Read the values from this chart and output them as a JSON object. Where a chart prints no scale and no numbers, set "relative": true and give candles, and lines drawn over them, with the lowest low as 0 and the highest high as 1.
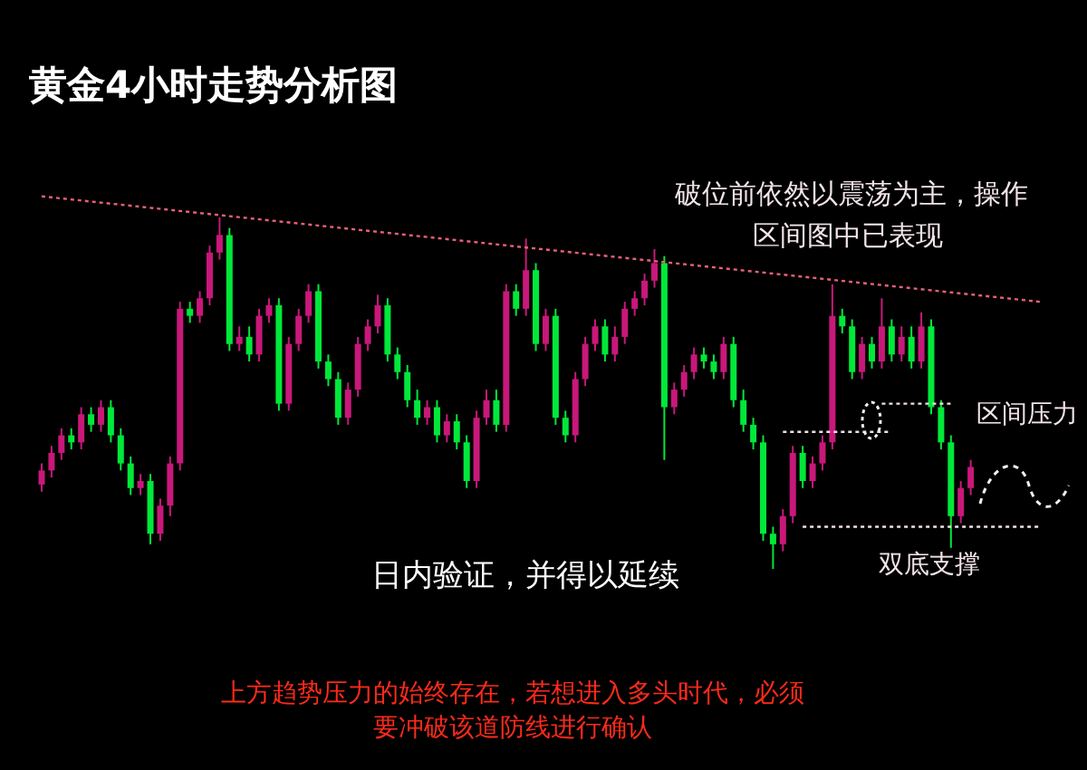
{
  "chart_data": {
    "type": "candlestick",
    "title": "黄金4小时走势分析图",
    "relative": true,
    "categories": [
      null,
      null,
      null,
      null,
      null,
      null,
      null,
      null,
      null,
      null,
      null,
      null,
      null,
      null,
      null,
      null,
      null,
      null,
      null,
      null,
      null,
      null,
      null,
      null,
      null,
      null,
      null,
      null,
      null,
      null,
      null,
      null,
      null,
      null,
      null,
      null,
      null,
      null,
      null,
      null,
      null,
      null,
      null,
      null,
      null,
      null,
      null,
      null,
      null,
      null,
      null,
      null,
      null,
      null,
      null,
      null,
      null,
      null,
      null,
      null,
      null,
      null,
      null,
      null,
      null,
      null,
      null,
      null,
      null,
      null,
      null,
      null,
      null,
      null,
      null,
      null,
      null,
      null,
      null,
      null,
      null,
      null,
      null,
      null,
      null,
      null,
      null,
      null,
      null,
      null,
      null,
      null,
      null,
      null,
      null,
      null,
      null,
      null,
      null,
      null,
      null,
      null
    ],
    "ohlc": [
      [
        0.24,
        0.3,
        0.22,
        0.28
      ],
      [
        0.28,
        0.35,
        0.26,
        0.33
      ],
      [
        0.33,
        0.4,
        0.31,
        0.38
      ],
      [
        0.38,
        0.4,
        0.34,
        0.36
      ],
      [
        0.36,
        0.46,
        0.34,
        0.44
      ],
      [
        0.44,
        0.46,
        0.39,
        0.41
      ],
      [
        0.41,
        0.48,
        0.39,
        0.46
      ],
      [
        0.46,
        0.48,
        0.36,
        0.38
      ],
      [
        0.38,
        0.4,
        0.28,
        0.3
      ],
      [
        0.3,
        0.32,
        0.21,
        0.23
      ],
      [
        0.23,
        0.27,
        0.21,
        0.25
      ],
      [
        0.25,
        0.27,
        0.07,
        0.1
      ],
      [
        0.1,
        0.2,
        0.08,
        0.18
      ],
      [
        0.18,
        0.32,
        0.15,
        0.3
      ],
      [
        0.3,
        0.76,
        0.28,
        0.74
      ],
      [
        0.74,
        0.76,
        0.7,
        0.72
      ],
      [
        0.72,
        0.79,
        0.7,
        0.77
      ],
      [
        0.77,
        0.92,
        0.75,
        0.9
      ],
      [
        0.9,
        1.0,
        0.88,
        0.95
      ],
      [
        0.95,
        0.97,
        0.62,
        0.64
      ],
      [
        0.64,
        0.69,
        0.62,
        0.66
      ],
      [
        0.66,
        0.69,
        0.59,
        0.61
      ],
      [
        0.61,
        0.74,
        0.59,
        0.72
      ],
      [
        0.72,
        0.77,
        0.7,
        0.75
      ],
      [
        0.75,
        0.77,
        0.45,
        0.47
      ],
      [
        0.47,
        0.66,
        0.45,
        0.64
      ],
      [
        0.64,
        0.74,
        0.62,
        0.72
      ],
      [
        0.72,
        0.81,
        0.7,
        0.79
      ],
      [
        0.79,
        0.81,
        0.57,
        0.59
      ],
      [
        0.59,
        0.61,
        0.52,
        0.54
      ],
      [
        0.54,
        0.56,
        0.41,
        0.43
      ],
      [
        0.43,
        0.53,
        0.41,
        0.51
      ],
      [
        0.51,
        0.66,
        0.49,
        0.64
      ],
      [
        0.64,
        0.71,
        0.62,
        0.69
      ],
      [
        0.69,
        0.78,
        0.67,
        0.75
      ],
      [
        0.75,
        0.77,
        0.59,
        0.61
      ],
      [
        0.61,
        0.63,
        0.54,
        0.56
      ],
      [
        0.56,
        0.58,
        0.46,
        0.48
      ],
      [
        0.48,
        0.51,
        0.41,
        0.43
      ],
      [
        0.43,
        0.48,
        0.41,
        0.46
      ],
      [
        0.46,
        0.48,
        0.36,
        0.38
      ],
      [
        0.38,
        0.44,
        0.36,
        0.42
      ],
      [
        0.42,
        0.44,
        0.34,
        0.36
      ],
      [
        0.36,
        0.38,
        0.23,
        0.25
      ],
      [
        0.25,
        0.45,
        0.23,
        0.43
      ],
      [
        0.43,
        0.51,
        0.41,
        0.48
      ],
      [
        0.48,
        0.51,
        0.39,
        0.41
      ],
      [
        0.41,
        0.81,
        0.39,
        0.79
      ],
      [
        0.79,
        0.81,
        0.72,
        0.74
      ],
      [
        0.74,
        0.94,
        0.72,
        0.85
      ],
      [
        0.85,
        0.87,
        0.62,
        0.64
      ],
      [
        0.64,
        0.74,
        0.62,
        0.72
      ],
      [
        0.72,
        0.74,
        0.41,
        0.43
      ],
      [
        0.43,
        0.45,
        0.36,
        0.38
      ],
      [
        0.38,
        0.56,
        0.36,
        0.54
      ],
      [
        0.54,
        0.66,
        0.52,
        0.64
      ],
      [
        0.64,
        0.71,
        0.62,
        0.69
      ],
      [
        0.69,
        0.71,
        0.59,
        0.61
      ],
      [
        0.61,
        0.69,
        0.59,
        0.66
      ],
      [
        0.66,
        0.76,
        0.64,
        0.74
      ],
      [
        0.74,
        0.79,
        0.72,
        0.77
      ],
      [
        0.77,
        0.84,
        0.75,
        0.82
      ],
      [
        0.82,
        0.91,
        0.8,
        0.87
      ],
      [
        0.87,
        0.89,
        0.31,
        0.46
      ],
      [
        0.46,
        0.53,
        0.44,
        0.51
      ],
      [
        0.51,
        0.58,
        0.49,
        0.56
      ],
      [
        0.56,
        0.63,
        0.54,
        0.61
      ],
      [
        0.61,
        0.63,
        0.57,
        0.59
      ],
      [
        0.59,
        0.61,
        0.54,
        0.56
      ],
      [
        0.56,
        0.66,
        0.54,
        0.64
      ],
      [
        0.64,
        0.66,
        0.46,
        0.48
      ],
      [
        0.48,
        0.51,
        0.39,
        0.41
      ],
      [
        0.41,
        0.43,
        0.34,
        0.36
      ],
      [
        0.36,
        0.38,
        0.08,
        0.1
      ],
      [
        0.1,
        0.12,
        0,
        0.07
      ],
      [
        0.07,
        0.17,
        0.05,
        0.15
      ],
      [
        0.15,
        0.35,
        0.13,
        0.33
      ],
      [
        0.33,
        0.35,
        0.23,
        0.25
      ],
      [
        0.25,
        0.32,
        0.23,
        0.3
      ],
      [
        0.3,
        0.38,
        0.28,
        0.36
      ],
      [
        0.36,
        0.81,
        0.34,
        0.72
      ],
      [
        0.72,
        0.74,
        0.67,
        0.69
      ],
      [
        0.69,
        0.71,
        0.54,
        0.56
      ],
      [
        0.56,
        0.66,
        0.54,
        0.64
      ],
      [
        0.64,
        0.66,
        0.57,
        0.59
      ],
      [
        0.59,
        0.77,
        0.57,
        0.69
      ],
      [
        0.69,
        0.71,
        0.59,
        0.61
      ],
      [
        0.61,
        0.69,
        0.59,
        0.66
      ],
      [
        0.66,
        0.69,
        0.57,
        0.59
      ],
      [
        0.59,
        0.73,
        0.57,
        0.69
      ],
      [
        0.69,
        0.71,
        0.44,
        0.46
      ],
      [
        0.46,
        0.48,
        0.34,
        0.36
      ],
      [
        0.36,
        0.38,
        0.06,
        0.15
      ],
      [
        0.15,
        0.25,
        0.13,
        0.23
      ],
      [
        0.23,
        0.31,
        0.21,
        0.29
      ],
      null,
      null,
      null,
      null,
      null,
      null,
      null
    ],
    "colors": [
      "#c8187a",
      "#c8187a",
      "#c8187a",
      "#00e83a",
      "#c8187a",
      "#00e83a",
      "#c8187a",
      "#00e83a",
      "#00e83a",
      "#00e83a",
      "#c8187a",
      "#00e83a",
      "#c8187a",
      "#c8187a",
      "#c8187a",
      "#00e83a",
      "#c8187a",
      "#c8187a",
      "#c8187a",
      "#00e83a",
      "#c8187a",
      "#00e83a",
      "#c8187a",
      "#c8187a",
      "#00e83a",
      "#c8187a",
      "#c8187a",
      "#c8187a",
      "#00e83a",
      "#00e83a",
      "#00e83a",
      "#c8187a",
      "#c8187a",
      "#c8187a",
      "#c8187a",
      "#00e83a",
      "#00e83a",
      "#00e83a",
      "#00e83a",
      "#c8187a",
      "#00e83a",
      "#c8187a",
      "#00e83a",
      "#00e83a",
      "#c8187a",
      "#c8187a",
      "#00e83a",
      "#c8187a",
      "#00e83a",
      "#c8187a",
      "#00e83a",
      "#c8187a",
      "#00e83a",
      "#00e83a",
      "#c8187a",
      "#c8187a",
      "#c8187a",
      "#00e83a",
      "#c8187a",
      "#c8187a",
      "#c8187a",
      "#c8187a",
      "#c8187a",
      "#00e83a",
      "#c8187a",
      "#c8187a",
      "#c8187a",
      "#00e83a",
      "#00e83a",
      "#c8187a",
      "#00e83a",
      "#00e83a",
      "#00e83a",
      "#00e83a",
      "#00e83a",
      "#c8187a",
      "#c8187a",
      "#00e83a",
      "#c8187a",
      "#c8187a",
      "#c8187a",
      "#00e83a",
      "#00e83a",
      "#c8187a",
      "#00e83a",
      "#c8187a",
      "#00e83a",
      "#c8187a",
      "#00e83a",
      "#c8187a",
      "#00e83a",
      "#00e83a",
      "#00e83a",
      "#c8187a",
      "#c8187a",
      null,
      null,
      null,
      null,
      null,
      null,
      null
    ],
    "series": [
      {
        "type": "line",
        "color": "#e8607a",
        "line_style": "dotted",
        "values": [
          1.06,
          null,
          null,
          null,
          null,
          null,
          null,
          null,
          null,
          null,
          null,
          null,
          null,
          null,
          null,
          null,
          null,
          null,
          null,
          null,
          null,
          null,
          null,
          null,
          null,
          null,
          null,
          null,
          null,
          null,
          null,
          null,
          null,
          null,
          null,
          null,
          null,
          null,
          null,
          null,
          null,
          null,
          null,
          null,
          null,
          null,
          null,
          null,
          null,
          null,
          null,
          null,
          null,
          null,
          null,
          null,
          null,
          null,
          null,
          null,
          null,
          null,
          null,
          null,
          null,
          null,
          null,
          null,
          null,
          null,
          null,
          null,
          null,
          null,
          null,
          null,
          null,
          null,
          null,
          null,
          null,
          null,
          null,
          null,
          null,
          null,
          null,
          null,
          null,
          null,
          null,
          null,
          null,
          null,
          null,
          null,
          null,
          null,
          null,
          null,
          null,
          0.76
        ]
      },
      {
        "type": "line",
        "color": "#f0e0e8",
        "line_style": "dotted",
        "values": [
          null,
          null,
          null,
          null,
          null,
          null,
          null,
          null,
          null,
          null,
          null,
          null,
          null,
          null,
          null,
          null,
          null,
          null,
          null,
          null,
          null,
          null,
          null,
          null,
          null,
          null,
          null,
          null,
          null,
          null,
          null,
          null,
          null,
          null,
          null,
          null,
          null,
          null,
          null,
          null,
          null,
          null,
          null,
          null,
          null,
          null,
          null,
          null,
          null,
          null,
          null,
          null,
          null,
          null,
          null,
          null,
          null,
          null,
          null,
          null,
          null,
          null,
          null,
          null,
          null,
          null,
          null,
          null,
          null,
          null,
          null,
          null,
          null,
          null,
          null,
          null,
          null,
          null,
          null,
          null,
          null,
          null,
          null,
          null,
          null,
          0.47,
          null,
          null,
          null,
          null,
          null,
          null,
          0.47,
          null,
          null,
          null,
          null,
          null,
          null,
          null,
          null,
          null
        ]
      },
      {
        "type": "line",
        "color": "#f0e0e8",
        "line_style": "dotted",
        "values": [
          null,
          null,
          null,
          null,
          null,
          null,
          null,
          null,
          null,
          null,
          null,
          null,
          null,
          null,
          null,
          null,
          null,
          null,
          null,
          null,
          null,
          null,
          null,
          null,
          null,
          null,
          null,
          null,
          null,
          null,
          null,
          null,
          null,
          null,
          null,
          null,
          null,
          null,
          null,
          null,
          null,
          null,
          null,
          null,
          null,
          null,
          null,
          null,
          null,
          null,
          null,
          null,
          null,
          null,
          null,
          null,
          null,
          null,
          null,
          null,
          null,
          null,
          null,
          null,
          null,
          null,
          null,
          null,
          null,
          null,
          null,
          null,
          null,
          null,
          null,
          0.39,
          null,
          null,
          null,
          null,
          null,
          null,
          null,
          null,
          null,
          null,
          0.39,
          null,
          null,
          null,
          null,
          null,
          null,
          null,
          null,
          null,
          null,
          null,
          null,
          null,
          null,
          null
        ]
      },
      {
        "type": "line",
        "color": "#f0e0e8",
        "line_style": "dotted",
        "values": [
          null,
          null,
          null,
          null,
          null,
          null,
          null,
          null,
          null,
          null,
          null,
          null,
          null,
          null,
          null,
          null,
          null,
          null,
          null,
          null,
          null,
          null,
          null,
          null,
          null,
          null,
          null,
          null,
          null,
          null,
          null,
          null,
          null,
          null,
          null,
          null,
          null,
          null,
          null,
          null,
          null,
          null,
          null,
          null,
          null,
          null,
          null,
          null,
          null,
          null,
          null,
          null,
          null,
          null,
          null,
          null,
          null,
          null,
          null,
          null,
          null,
          null,
          null,
          null,
          null,
          null,
          null,
          null,
          null,
          null,
          null,
          null,
          null,
          null,
          null,
          null,
          null,
          0.12,
          null,
          null,
          null,
          null,
          null,
          null,
          null,
          null,
          null,
          null,
          null,
          null,
          null,
          null,
          null,
          null,
          null,
          null,
          null,
          null,
          null,
          null,
          null,
          0.12
        ]
      }
    ],
    "annotations": [
      "破位前依然以震荡为主，操作",
      "区间图中已表现",
      "日内验证，并得以延续",
      "区间压力",
      "双底支撑",
      "上方趋势压力的始终存在，若想进入多头时代，必须",
      "要冲破该道防线进行确认"
    ]
  }
}
